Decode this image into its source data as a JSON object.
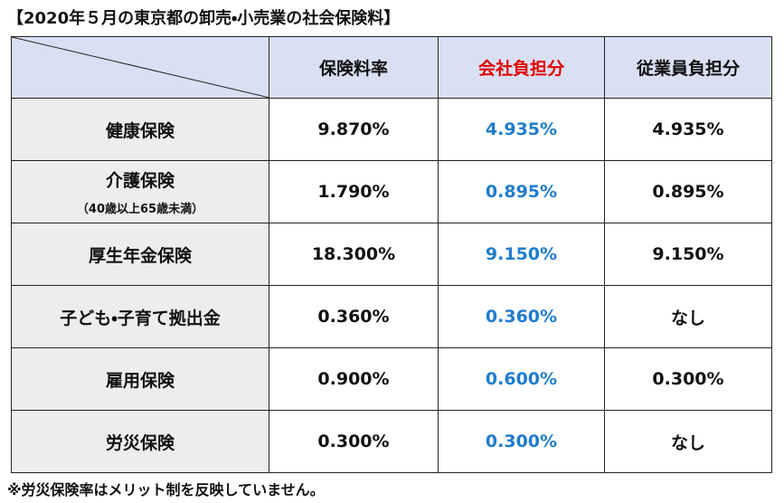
{
  "title": "【2020年５月の東京都の卸売・小売業の社会保険料】",
  "table": {
    "header": [
      "保険料率",
      "会社負担分",
      "従業員負担分"
    ],
    "rows": [
      {
        "label": "健康保険",
        "cells": [
          "9.870%",
          "4.935%",
          "4.935%"
        ]
      },
      {
        "label": "介護保険",
        "note": "（40歳以上65歳未満）",
        "cells": [
          "1.790%",
          "0.895%",
          "0.895%"
        ]
      },
      {
        "label": "厚生年金保険",
        "cells": [
          "18.300%",
          "9.150%",
          "9.150%"
        ]
      },
      {
        "label": "子ども・子育て拠出金",
        "cells": [
          "0.360%",
          "0.360%",
          "なし"
        ]
      },
      {
        "label": "雇用保険",
        "cells": [
          "0.900%",
          "0.600%",
          "0.300%"
        ]
      },
      {
        "label": "労災保険",
        "cells": [
          "0.300%",
          "0.300%",
          "なし"
        ]
      }
    ]
  },
  "footnote": "※労災保険率はメリット制を反映していません。"
}
